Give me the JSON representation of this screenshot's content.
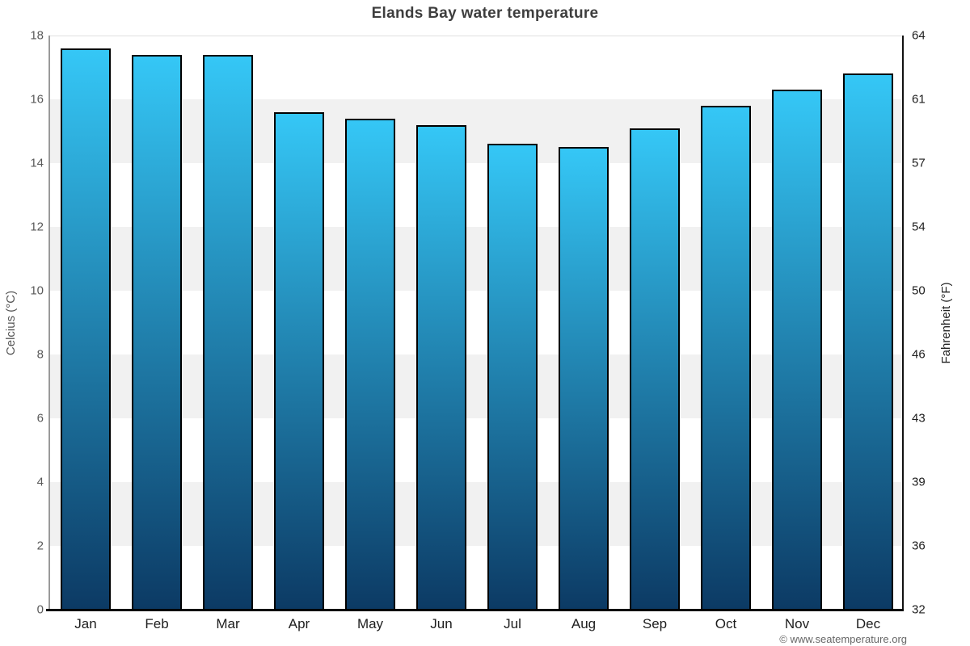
{
  "title": "Elands Bay water temperature",
  "chart_data": {
    "type": "bar",
    "title": "Elands Bay water temperature",
    "categories": [
      "Jan",
      "Feb",
      "Mar",
      "Apr",
      "May",
      "Jun",
      "Jul",
      "Aug",
      "Sep",
      "Oct",
      "Nov",
      "Dec"
    ],
    "values": [
      17.6,
      17.4,
      17.4,
      15.6,
      15.4,
      15.2,
      14.6,
      14.5,
      15.1,
      15.8,
      16.3,
      16.8
    ],
    "xlabel": "",
    "ylabel_left": "Celcius (°C)",
    "ylabel_right": "Fahrenheit (°F)",
    "ylim": [
      0,
      18
    ],
    "yticks": [
      {
        "celsius": "0",
        "fahrenheit": "32"
      },
      {
        "celsius": "2",
        "fahrenheit": "36"
      },
      {
        "celsius": "4",
        "fahrenheit": "39"
      },
      {
        "celsius": "6",
        "fahrenheit": "43"
      },
      {
        "celsius": "8",
        "fahrenheit": "46"
      },
      {
        "celsius": "10",
        "fahrenheit": "50"
      },
      {
        "celsius": "12",
        "fahrenheit": "54"
      },
      {
        "celsius": "14",
        "fahrenheit": "57"
      },
      {
        "celsius": "16",
        "fahrenheit": "61"
      },
      {
        "celsius": "18",
        "fahrenheit": "64"
      }
    ],
    "grid": "alternating-horizontal-bands",
    "legend": "none",
    "colors": {
      "bar_gradient_top": "#35c7f6",
      "bar_gradient_bottom": "#0c3a64",
      "bar_border": "#000000",
      "band": "#f1f1f1",
      "title_text": "#3e3e3e",
      "celsius_tick_text": "#5a5a5a",
      "fahrenheit_tick_text": "#1d1d1d",
      "month_text": "#1d1d1d"
    }
  },
  "footer": {
    "copyright": "© www.seatemperature.org"
  }
}
